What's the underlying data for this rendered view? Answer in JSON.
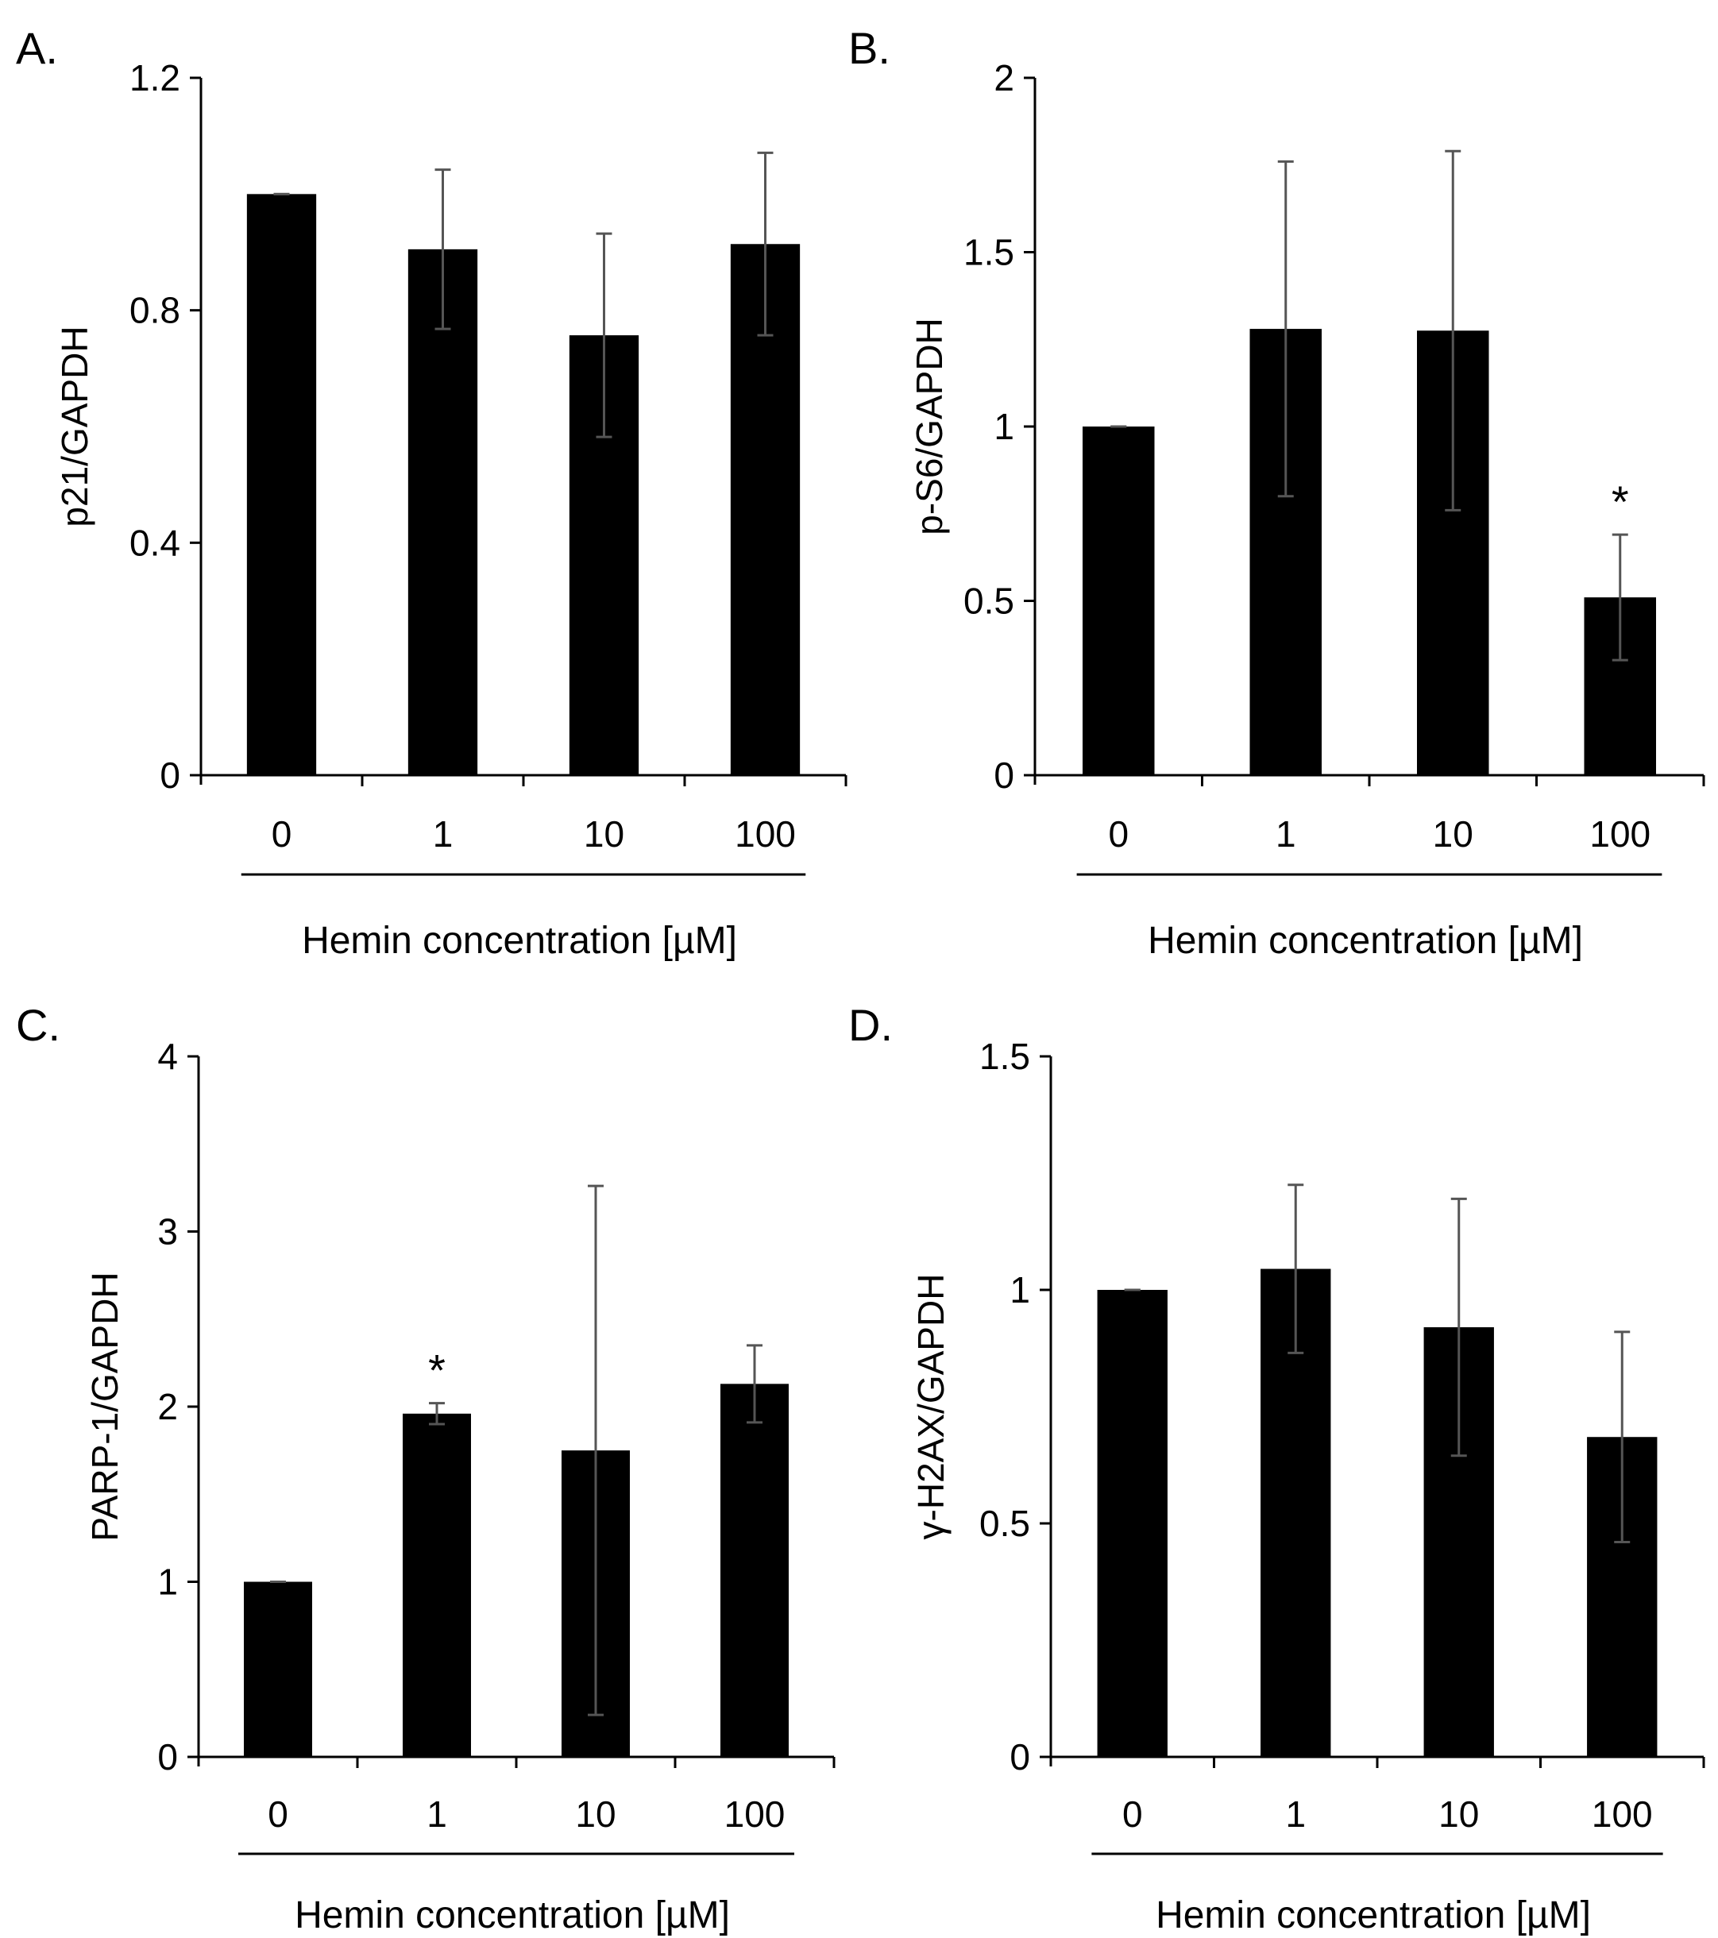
{
  "chart_data": [
    {
      "type": "bar",
      "panel_label": "A.",
      "title": "",
      "ylabel": "p21/GAPDH",
      "xlabel": "Hemin concentration [µM]",
      "categories": [
        "0",
        "1",
        "10",
        "100"
      ],
      "values": [
        1.0,
        0.905,
        0.757,
        0.914
      ],
      "errors": [
        0.0,
        0.137,
        0.175,
        0.157
      ],
      "significance": [
        "",
        "",
        "",
        ""
      ],
      "ylim": [
        0,
        1.2
      ],
      "yticks": [
        0,
        0.4,
        0.8,
        1.2
      ],
      "ytick_labels": [
        "0",
        "0.4",
        "0.8",
        "1.2"
      ],
      "grid": false,
      "colors": {
        "bar": "#000000",
        "error": "#555555"
      }
    },
    {
      "type": "bar",
      "panel_label": "B.",
      "title": "",
      "ylabel": "p-S6/GAPDH",
      "xlabel": "Hemin concentration [µM]",
      "categories": [
        "0",
        "1",
        "10",
        "100"
      ],
      "values": [
        1.0,
        1.28,
        1.275,
        0.51
      ],
      "errors": [
        0.0,
        0.48,
        0.515,
        0.18
      ],
      "significance": [
        "",
        "",
        "",
        "*"
      ],
      "ylim": [
        0,
        2
      ],
      "yticks": [
        0,
        0.5,
        1,
        1.5,
        2
      ],
      "ytick_labels": [
        "0",
        "0.5",
        "1",
        "1.5",
        "2"
      ],
      "grid": false,
      "colors": {
        "bar": "#000000",
        "error": "#555555"
      }
    },
    {
      "type": "bar",
      "panel_label": "C.",
      "title": "",
      "ylabel": "PARP-1/GAPDH",
      "xlabel": "Hemin concentration [µM]",
      "categories": [
        "0",
        "1",
        "10",
        "100"
      ],
      "values": [
        1.0,
        1.96,
        1.75,
        2.13
      ],
      "errors": [
        0.0,
        0.06,
        1.51,
        0.22
      ],
      "significance": [
        "",
        "*",
        "",
        ""
      ],
      "ylim": [
        0,
        4
      ],
      "yticks": [
        0,
        1,
        2,
        3,
        4
      ],
      "ytick_labels": [
        "0",
        "1",
        "2",
        "3",
        "4"
      ],
      "grid": false,
      "colors": {
        "bar": "#000000",
        "error": "#555555"
      }
    },
    {
      "type": "bar",
      "panel_label": "D.",
      "title": "",
      "ylabel": "γ-H2AX/GAPDH",
      "xlabel": "Hemin concentration [µM]",
      "categories": [
        "0",
        "1",
        "10",
        "100"
      ],
      "values": [
        1.0,
        1.045,
        0.92,
        0.685
      ],
      "errors": [
        0.0,
        0.18,
        0.275,
        0.225
      ],
      "significance": [
        "",
        "",
        "",
        ""
      ],
      "ylim": [
        0,
        1.5
      ],
      "yticks": [
        0,
        0.5,
        1,
        1.5
      ],
      "ytick_labels": [
        "0",
        "0.5",
        "1",
        "1.5"
      ],
      "grid": false,
      "colors": {
        "bar": "#000000",
        "error": "#555555"
      }
    }
  ]
}
